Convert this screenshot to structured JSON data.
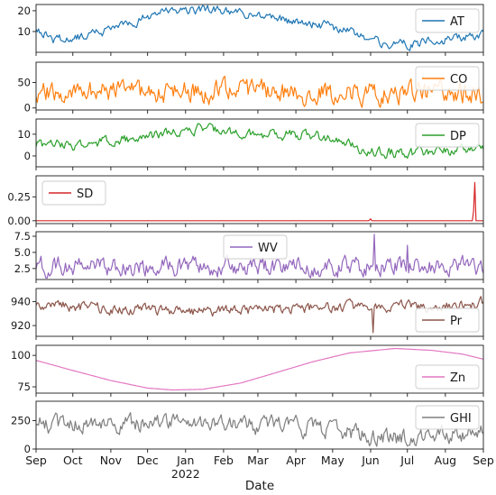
{
  "chart_data": {
    "type": "line",
    "xlabel": "Date",
    "x_range": [
      "2021-09-01",
      "2022-09-01"
    ],
    "x_tick_labels": [
      "Sep",
      "Oct",
      "Nov",
      "Dec",
      "Jan",
      "Feb",
      "Mar",
      "Apr",
      "May",
      "Jun",
      "Jul",
      "Aug",
      "Sep"
    ],
    "x_tick_dates": [
      "2021-09-01",
      "2021-10-01",
      "2021-11-01",
      "2021-12-01",
      "2022-01-01",
      "2022-02-01",
      "2022-03-01",
      "2022-04-01",
      "2022-05-01",
      "2022-06-01",
      "2022-07-01",
      "2022-08-01",
      "2022-09-01"
    ],
    "year_label": "2022",
    "grid": false,
    "legend_placement": "right",
    "panels": [
      {
        "name": "AT",
        "color": "#1f77b4",
        "ylim": [
          0,
          23
        ],
        "yticks": [
          10,
          20
        ],
        "legend_pos": "top-right",
        "anchors": [
          [
            "2021-09-01",
            12
          ],
          [
            "2021-09-15",
            6
          ],
          [
            "2021-10-01",
            7
          ],
          [
            "2021-10-15",
            9
          ],
          [
            "2021-11-01",
            11
          ],
          [
            "2021-11-15",
            13
          ],
          [
            "2021-12-01",
            17
          ],
          [
            "2021-12-15",
            19
          ],
          [
            "2022-01-01",
            21
          ],
          [
            "2022-01-15",
            20
          ],
          [
            "2022-02-01",
            20
          ],
          [
            "2022-02-15",
            19
          ],
          [
            "2022-03-01",
            18
          ],
          [
            "2022-03-15",
            16
          ],
          [
            "2022-04-01",
            15
          ],
          [
            "2022-04-15",
            14
          ],
          [
            "2022-05-01",
            12
          ],
          [
            "2022-05-15",
            10
          ],
          [
            "2022-06-01",
            6
          ],
          [
            "2022-06-15",
            4
          ],
          [
            "2022-07-01",
            4
          ],
          [
            "2022-07-15",
            5
          ],
          [
            "2022-08-01",
            6
          ],
          [
            "2022-08-15",
            7
          ],
          [
            "2022-09-01",
            9
          ]
        ],
        "noise": 2.5,
        "seed": 1
      },
      {
        "name": "CO",
        "color": "#ff7f0e",
        "ylim": [
          -4,
          90
        ],
        "yticks": [
          0,
          50
        ],
        "legend_pos": "top-right",
        "anchors": [
          [
            "2021-09-01",
            30
          ],
          [
            "2022-09-01",
            30
          ]
        ],
        "noise": 24,
        "seed": 2,
        "floor": 0
      },
      {
        "name": "DP",
        "color": "#2ca02c",
        "ylim": [
          -5,
          17
        ],
        "yticks": [
          0,
          10
        ],
        "legend_pos": "top-right",
        "anchors": [
          [
            "2021-09-01",
            5
          ],
          [
            "2021-10-01",
            5
          ],
          [
            "2021-11-01",
            7
          ],
          [
            "2021-12-01",
            9
          ],
          [
            "2022-01-01",
            11
          ],
          [
            "2022-01-15",
            13
          ],
          [
            "2022-02-01",
            12
          ],
          [
            "2022-03-01",
            10
          ],
          [
            "2022-04-01",
            10
          ],
          [
            "2022-05-01",
            8
          ],
          [
            "2022-05-15",
            5
          ],
          [
            "2022-06-01",
            2
          ],
          [
            "2022-07-01",
            1
          ],
          [
            "2022-08-01",
            2
          ],
          [
            "2022-09-01",
            4
          ]
        ],
        "noise": 2.6,
        "seed": 3
      },
      {
        "name": "SD",
        "color": "#d62728",
        "ylim": [
          -0.03,
          0.47
        ],
        "yticks": [
          0.0,
          0.25
        ],
        "ytick_labels": [
          "0.00",
          "0.25"
        ],
        "legend_pos": "top-left",
        "anchors": [
          [
            "2021-09-01",
            0.0
          ],
          [
            "2022-09-01",
            0.0
          ]
        ],
        "noise": 0.0,
        "seed": 4,
        "spikes": [
          [
            "2022-06-01",
            0.02
          ],
          [
            "2022-08-25",
            0.4
          ]
        ]
      },
      {
        "name": "WV",
        "color": "#9467bd",
        "ylim": [
          0.8,
          8.2
        ],
        "yticks": [
          2.5,
          5.0,
          7.5
        ],
        "ytick_labels": [
          "2.5",
          "5.0",
          "7.5"
        ],
        "legend_pos": "top-center",
        "anchors": [
          [
            "2021-09-01",
            2.8
          ],
          [
            "2022-09-01",
            2.8
          ]
        ],
        "noise": 1.6,
        "seed": 5,
        "floor": 1.0,
        "spikes": [
          [
            "2022-06-04",
            7.8
          ],
          [
            "2022-07-01",
            6.1
          ]
        ]
      },
      {
        "name": "Pr",
        "color": "#8c564b",
        "ylim": [
          911,
          951
        ],
        "yticks": [
          920,
          940
        ],
        "legend_pos": "bottom-right",
        "anchors": [
          [
            "2021-09-01",
            938
          ],
          [
            "2021-11-01",
            934
          ],
          [
            "2022-01-01",
            932
          ],
          [
            "2022-03-01",
            933
          ],
          [
            "2022-05-01",
            935
          ],
          [
            "2022-07-01",
            936
          ],
          [
            "2022-09-01",
            939
          ]
        ],
        "noise": 5,
        "seed": 6,
        "spikes": [
          [
            "2022-06-03",
            914
          ]
        ]
      },
      {
        "name": "Zn",
        "color": "#e377c2",
        "ylim": [
          70,
          108
        ],
        "yticks": [
          75,
          100
        ],
        "legend_pos": "bottom-right",
        "anchors": [
          [
            "2021-09-01",
            96
          ],
          [
            "2021-10-01",
            88
          ],
          [
            "2021-11-01",
            80
          ],
          [
            "2021-12-01",
            74
          ],
          [
            "2021-12-21",
            72.5
          ],
          [
            "2022-01-15",
            73
          ],
          [
            "2022-02-15",
            78
          ],
          [
            "2022-03-15",
            86
          ],
          [
            "2022-04-15",
            95
          ],
          [
            "2022-05-15",
            102
          ],
          [
            "2022-06-21",
            105.5
          ],
          [
            "2022-07-21",
            104
          ],
          [
            "2022-08-15",
            101
          ],
          [
            "2022-09-01",
            97
          ]
        ],
        "noise": 0,
        "seed": 7
      },
      {
        "name": "GHI",
        "color": "#7f7f7f",
        "ylim": [
          0,
          420
        ],
        "yticks": [
          0,
          250
        ],
        "legend_pos": "top-right",
        "anchors": [
          [
            "2021-09-01",
            220
          ],
          [
            "2021-11-01",
            210
          ],
          [
            "2022-01-01",
            230
          ],
          [
            "2022-03-01",
            210
          ],
          [
            "2022-05-01",
            170
          ],
          [
            "2022-06-01",
            110
          ],
          [
            "2022-07-01",
            90
          ],
          [
            "2022-08-01",
            120
          ],
          [
            "2022-09-01",
            140
          ]
        ],
        "noise": 85,
        "seed": 8,
        "floor": 20
      }
    ]
  }
}
